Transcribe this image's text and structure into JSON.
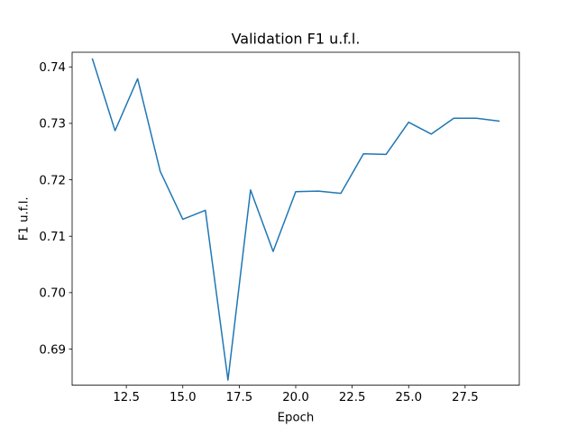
{
  "chart_data": {
    "type": "line",
    "title": "Validation F1 u.f.l.",
    "xlabel": "Epoch",
    "ylabel": "F1 u.f.l.",
    "xlim": [
      10.1,
      29.9
    ],
    "ylim": [
      0.6836,
      0.7426
    ],
    "xticks": [
      "12.5",
      "15.0",
      "17.5",
      "20.0",
      "22.5",
      "25.0",
      "27.5"
    ],
    "yticks": [
      "0.69",
      "0.70",
      "0.71",
      "0.72",
      "0.73",
      "0.74"
    ],
    "grid": false,
    "series": [
      {
        "color": "#1f77b4",
        "x": [
          11,
          12,
          13,
          14,
          15,
          16,
          17,
          18,
          19,
          20,
          21,
          22,
          23,
          24,
          25,
          26,
          27,
          28,
          29
        ],
        "values": [
          0.7414,
          0.7287,
          0.7379,
          0.7215,
          0.713,
          0.7146,
          0.6845,
          0.7182,
          0.7073,
          0.7179,
          0.718,
          0.7176,
          0.7246,
          0.7245,
          0.7302,
          0.7281,
          0.7309,
          0.7309,
          0.7304
        ]
      }
    ]
  }
}
